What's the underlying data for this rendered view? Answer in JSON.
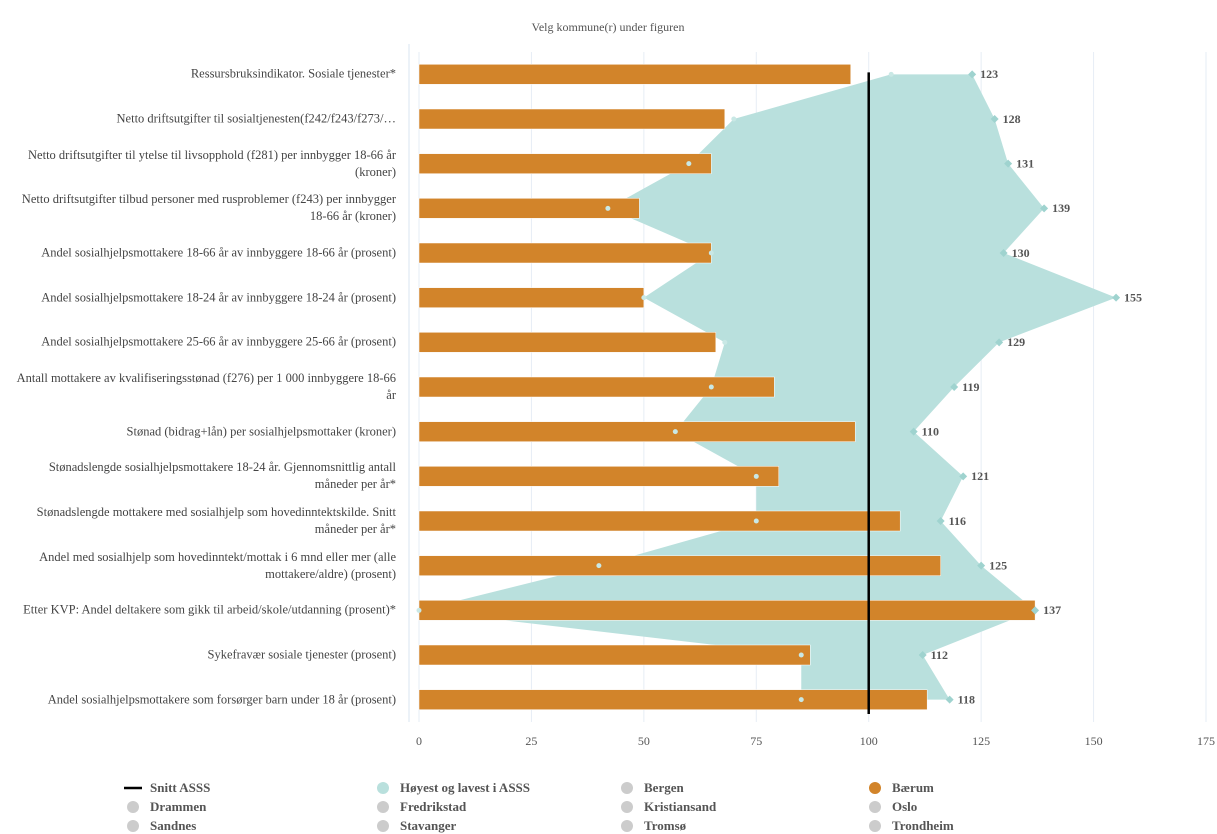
{
  "chart_data": {
    "type": "bar",
    "orientation": "horizontal",
    "title": "Velg kommune(r) under figuren",
    "categories": [
      "Ressursbruksindikator. Sosiale tjenester*",
      "Netto driftsutgifter til sosialtjenesten(f242/f243/f273/…",
      "Netto driftsutgifter til ytelse til livsopphold (f281) per innbygger 18-66 år (kroner)",
      "Netto driftsutgifter tilbud personer med rusproblemer (f243) per innbygger 18-66 år (kroner)",
      "Andel sosialhjelpsmottakere 18-66 år av innbyggere 18-66 år (prosent)",
      "Andel sosialhjelpsmottakere 18-24 år av innbyggere 18-24 år (prosent)",
      "Andel sosialhjelpsmottakere 25-66 år av innbyggere 25-66 år (prosent)",
      "Antall mottakere av kvalifiseringsstønad (f276) per 1 000 innbyggere 18-66 år",
      "Stønad (bidrag+lån) per sosialhjelpsmottaker (kroner)",
      "Stønadslengde sosialhjelpsmottakere 18-24 år. Gjennomsnittlig antall måneder per år*",
      "Stønadslengde mottakere med sosialhjelp som hovedinntektskilde. Snitt måneder per år*",
      "Andel med sosialhjelp som hovedinntekt/mottak i 6 mnd eller mer (alle mottakere/aldre) (prosent)",
      "Etter KVP: Andel deltakere som gikk til arbeid/skole/utdanning (prosent)*",
      "Sykefravær sosiale tjenester (prosent)",
      "Andel sosialhjelpsmottakere som forsørger barn under 18 år (prosent)"
    ],
    "series": [
      {
        "name": "Bærum",
        "color": "#d2842a",
        "values": [
          96,
          68,
          65,
          49,
          65,
          50,
          66,
          79,
          97,
          80,
          107,
          116,
          137,
          87,
          113
        ]
      }
    ],
    "range": {
      "name": "Høyest og lavest i ASSS",
      "color": "#b9e0dd",
      "high": [
        123,
        128,
        131,
        139,
        130,
        155,
        129,
        119,
        110,
        121,
        116,
        125,
        137,
        112,
        118
      ],
      "low": [
        105,
        70,
        60,
        42,
        65,
        50,
        68,
        65,
        57,
        75,
        75,
        40,
        0,
        85,
        85
      ]
    },
    "reference": {
      "name": "Snitt ASSS",
      "value": 100,
      "color": "#000000"
    },
    "other_municipalities": [
      "Bergen",
      "Drammen",
      "Fredrikstad",
      "Kristiansand",
      "Oslo",
      "Sandnes",
      "Stavanger",
      "Tromsø",
      "Trondheim"
    ],
    "inactive_color": "#cccccc",
    "xlim": [
      0,
      175
    ],
    "xticks": [
      0,
      25,
      50,
      75,
      100,
      125,
      150,
      175
    ],
    "grid": true
  }
}
